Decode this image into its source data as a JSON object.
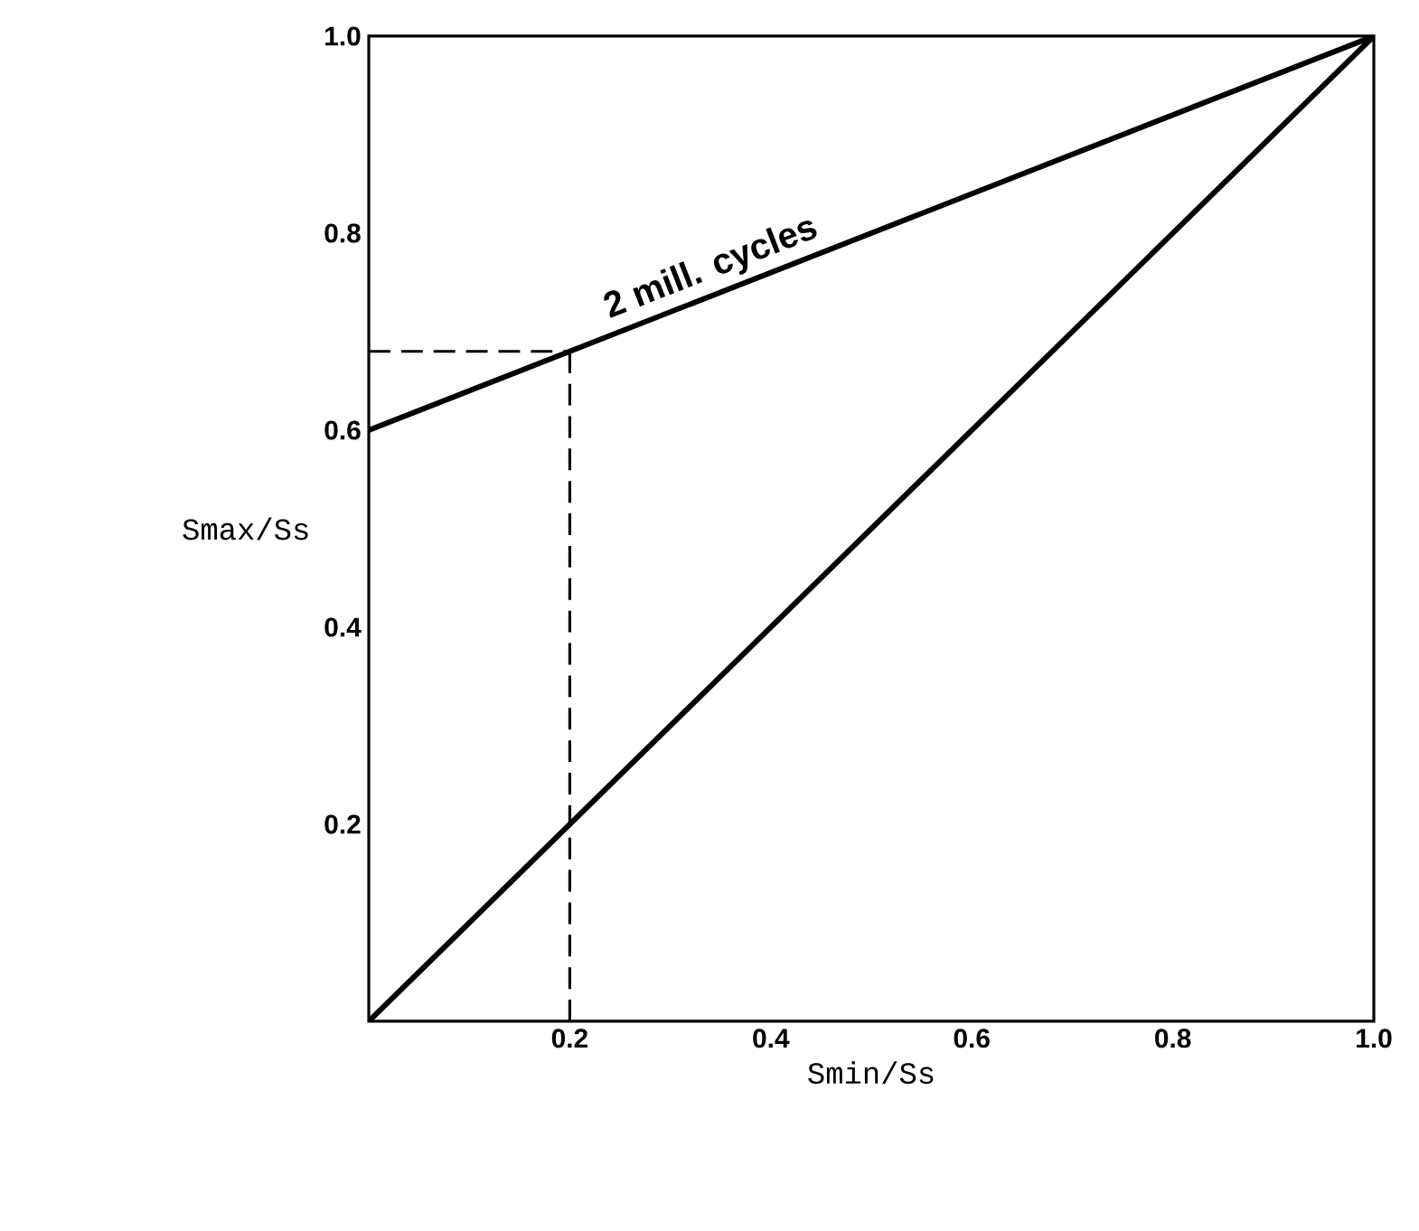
{
  "chart_data": {
    "type": "line",
    "xlabel": "Smin/Ss",
    "ylabel": "Smax/Ss",
    "xlim": [
      0,
      1
    ],
    "ylim": [
      0,
      1
    ],
    "xticks": [
      0.2,
      0.4,
      0.6,
      0.8,
      {
        "value": 1,
        "label": "1.0"
      }
    ],
    "yticks": [
      0.2,
      0.4,
      0.6,
      0.8,
      {
        "value": 1,
        "label": "1.0"
      }
    ],
    "grid": false,
    "legend": false,
    "marker": "none",
    "series": [
      {
        "name": "2 mill. cycles",
        "color": "#000000",
        "x": [
          0,
          0.2,
          1.0
        ],
        "values": [
          0.6,
          0.68,
          1.0
        ]
      },
      {
        "color": "#000000",
        "x": [
          0,
          1.0
        ],
        "values": [
          0,
          1.0
        ]
      },
      {
        "color": "#000000",
        "line_style": "dashed",
        "x": [
          0,
          0.2
        ],
        "values": [
          0.68,
          0.68
        ]
      },
      {
        "color": "#000000",
        "line_style": "dashed",
        "x": [
          0.2,
          0.2
        ],
        "values": [
          0.68,
          0
        ]
      }
    ]
  }
}
